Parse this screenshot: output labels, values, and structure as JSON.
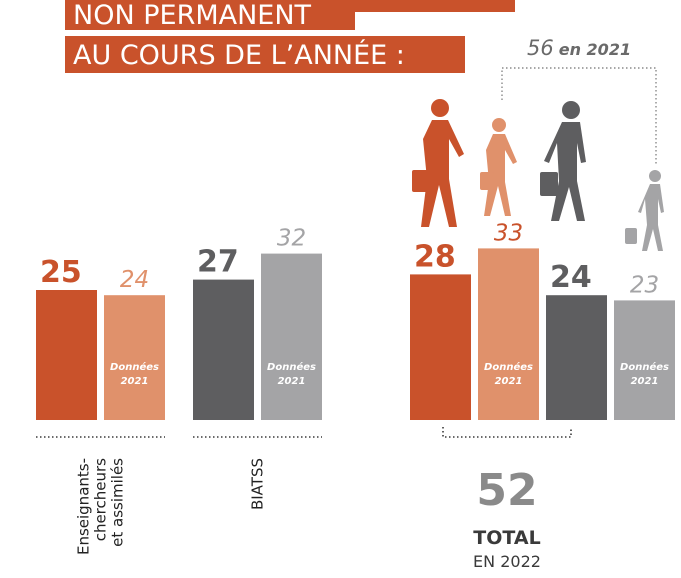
{
  "chart_data": {
    "type": "bar",
    "title": [
      "NON PERMANENT",
      "AU COURS DE L’ANNÉE :"
    ],
    "groups": [
      {
        "label": [
          "Enseignants-",
          "chercheurs",
          "et assimilés"
        ],
        "bars": [
          {
            "value": 25,
            "color": "#c9522b",
            "label_color": "#c9522b"
          },
          {
            "value": 24,
            "color": "#e0916b",
            "label_color": "#e0916b",
            "note": [
              "Données",
              "2021"
            ]
          }
        ]
      },
      {
        "label": [
          "BIATSS"
        ],
        "bars": [
          {
            "value": 27,
            "color": "#5e5e60",
            "label_color": "#5e5e60"
          },
          {
            "value": 32,
            "color": "#a4a4a6",
            "label_color": "#a4a4a6",
            "note": [
              "Données",
              "2021"
            ]
          }
        ]
      },
      {
        "label": [],
        "bars": [
          {
            "value": 28,
            "color": "#c9522b",
            "label_color": "#c9522b"
          },
          {
            "value": 33,
            "color": "#e0916b",
            "label_color": "#c9522b",
            "note": [
              "Données",
              "2021"
            ]
          },
          {
            "value": 24,
            "color": "#5e5e60",
            "label_color": "#5e5e60"
          },
          {
            "value": 23,
            "color": "#a4a4a6",
            "label_color": "#a4a4a6",
            "note": [
              "Données",
              "2021"
            ]
          }
        ]
      }
    ],
    "comparison": {
      "value": 56,
      "text": "en 2021"
    },
    "total": {
      "value": 52,
      "label": "TOTAL",
      "sublabel": "EN 2022"
    }
  }
}
